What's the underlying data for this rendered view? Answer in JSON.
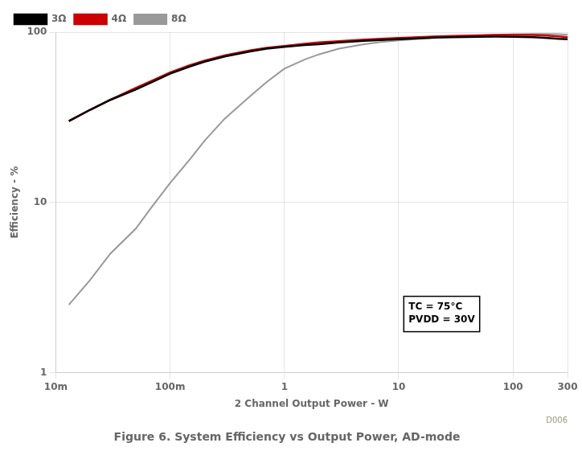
{
  "chart_data": {
    "type": "line",
    "title": "Figure 6. System Efficiency vs Output Power, AD-mode",
    "xlabel": "2 Channel Output Power - W",
    "ylabel": "Efficiency - %",
    "log": true,
    "grid": true,
    "legend": "upper left",
    "xlim": [
      0.01,
      300
    ],
    "ylim": [
      1,
      100
    ],
    "xticks": [
      {
        "value": 0.01,
        "label": "10m"
      },
      {
        "value": 0.1,
        "label": "100m"
      },
      1,
      10,
      100,
      300
    ],
    "yticks": [
      1,
      10,
      100
    ],
    "annotations": [
      "TC = 75°C\nPVDD = 30V",
      "D006"
    ],
    "x": [
      0.013,
      0.02,
      0.03,
      0.05,
      0.07,
      0.1,
      0.15,
      0.2,
      0.3,
      0.5,
      0.7,
      1.0,
      1.5,
      2.0,
      3.0,
      5.0,
      7.0,
      10,
      15,
      20,
      30,
      50,
      70,
      100,
      150,
      200,
      250,
      300
    ],
    "series": [
      {
        "name": "3Ω",
        "color": "#000000",
        "values": [
          30,
          35,
          40,
          46,
          51,
          57,
          63,
          67,
          72,
          77,
          80,
          82,
          84,
          85,
          87,
          89,
          90,
          91,
          92,
          93,
          93.5,
          94,
          94.2,
          94,
          93.5,
          92.5,
          91.5,
          91
        ]
      },
      {
        "name": "4Ω",
        "color": "#cc0000",
        "values": [
          30,
          35,
          40,
          47,
          52,
          58,
          64,
          68,
          73,
          78,
          81,
          83,
          85.5,
          87,
          88.5,
          90.5,
          91.5,
          92.5,
          93.5,
          94.2,
          95,
          95.8,
          96.2,
          96.5,
          96.2,
          95.5,
          94.5,
          93.5
        ]
      },
      {
        "name": "8Ω",
        "color": "#999999",
        "values": [
          2.5,
          3.5,
          5,
          7,
          9.5,
          13,
          18,
          23,
          31,
          42,
          51,
          61,
          69,
          74,
          80,
          85,
          87.5,
          89.5,
          91.5,
          92.5,
          94,
          95.5,
          96.5,
          97,
          97.5,
          97.5,
          97.2,
          96.5
        ]
      }
    ]
  }
}
